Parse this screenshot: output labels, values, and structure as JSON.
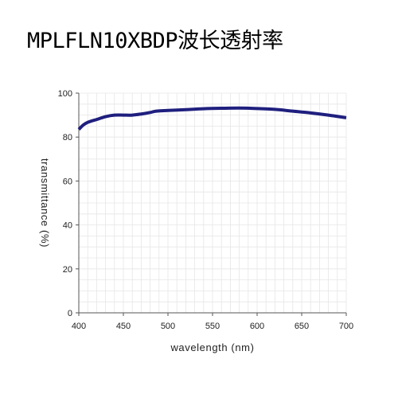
{
  "title": "MPLFLN10XBDP波长透射率",
  "chart_data": {
    "type": "line",
    "title": "MPLFLN10XBDP波长透射率",
    "xlabel": "wavelength (nm)",
    "ylabel": "transmittance (%)",
    "xlim": [
      400,
      700
    ],
    "ylim": [
      0,
      100
    ],
    "x_ticks": [
      400,
      450,
      500,
      550,
      600,
      650,
      700
    ],
    "y_ticks": [
      0,
      20,
      40,
      60,
      80,
      100
    ],
    "x_tick_labels": [
      "400",
      "450",
      "500",
      "550",
      "600",
      "650",
      "700"
    ],
    "y_tick_labels": [
      "0",
      "20",
      "40",
      "60",
      "80",
      "100"
    ],
    "grid": true,
    "line_color": "#1f1f7f",
    "grid_color": "#e6e6e6",
    "series": [
      {
        "x": [
          400,
          405,
          410,
          415,
          420,
          430,
          440,
          450,
          460,
          470,
          480,
          485,
          490,
          500,
          520,
          540,
          560,
          580,
          600,
          620,
          640,
          660,
          680,
          700
        ],
        "y": [
          83.5,
          85.5,
          86.7,
          87.4,
          88.0,
          89.3,
          90.0,
          90.0,
          90.0,
          90.5,
          91.2,
          91.7,
          91.9,
          92.1,
          92.5,
          92.9,
          93.1,
          93.2,
          93.0,
          92.6,
          91.8,
          91.0,
          90.0,
          88.8
        ]
      }
    ]
  }
}
